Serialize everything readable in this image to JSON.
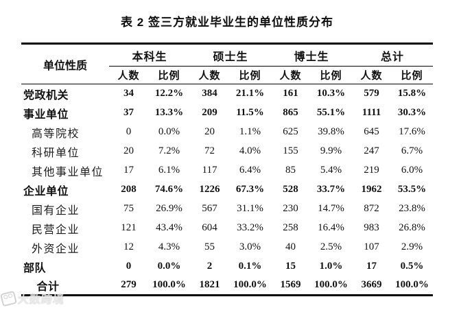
{
  "title": "表 2 签三方就业毕业生的单位性质分布",
  "table": {
    "row_header_label": "单位性质",
    "groups": [
      {
        "label": "本科生"
      },
      {
        "label": "硕士生"
      },
      {
        "label": "博士生"
      },
      {
        "label": "总计"
      }
    ],
    "subheaders": {
      "count": "人数",
      "ratio": "比例"
    },
    "rows": [
      {
        "label": "党政机关",
        "level": 0,
        "bold": true,
        "values": [
          "34",
          "12.2%",
          "384",
          "21.1%",
          "161",
          "10.3%",
          "579",
          "15.8%"
        ]
      },
      {
        "label": "事业单位",
        "level": 0,
        "bold": true,
        "values": [
          "37",
          "13.3%",
          "209",
          "11.5%",
          "865",
          "55.1%",
          "1111",
          "30.3%"
        ]
      },
      {
        "label": "高等院校",
        "level": 1,
        "bold": false,
        "values": [
          "0",
          "0.0%",
          "20",
          "1.1%",
          "625",
          "39.8%",
          "645",
          "17.6%"
        ]
      },
      {
        "label": "科研单位",
        "level": 1,
        "bold": false,
        "values": [
          "20",
          "7.2%",
          "72",
          "4.0%",
          "155",
          "9.9%",
          "247",
          "6.7%"
        ]
      },
      {
        "label": "其他事业单位",
        "level": 1,
        "bold": false,
        "values": [
          "17",
          "6.1%",
          "117",
          "6.4%",
          "85",
          "5.4%",
          "219",
          "6.0%"
        ]
      },
      {
        "label": "企业单位",
        "level": 0,
        "bold": true,
        "values": [
          "208",
          "74.6%",
          "1226",
          "67.3%",
          "528",
          "33.7%",
          "1962",
          "53.5%"
        ]
      },
      {
        "label": "国有企业",
        "level": 1,
        "bold": false,
        "values": [
          "75",
          "26.9%",
          "567",
          "31.1%",
          "230",
          "14.7%",
          "872",
          "23.8%"
        ]
      },
      {
        "label": "民营企业",
        "level": 1,
        "bold": false,
        "values": [
          "121",
          "43.4%",
          "604",
          "33.2%",
          "258",
          "16.4%",
          "983",
          "26.8%"
        ]
      },
      {
        "label": "外资企业",
        "level": 1,
        "bold": false,
        "values": [
          "12",
          "4.3%",
          "55",
          "3.0%",
          "40",
          "2.5%",
          "107",
          "2.9%"
        ]
      },
      {
        "label": "部队",
        "level": 0,
        "bold": true,
        "values": [
          "0",
          "0.0%",
          "2",
          "0.1%",
          "15",
          "1.0%",
          "17",
          "0.5%"
        ]
      },
      {
        "label": "合计",
        "level": 2,
        "bold": true,
        "values": [
          "279",
          "100.0%",
          "1821",
          "100.0%",
          "1569",
          "100.0%",
          "3669",
          "100.0%"
        ]
      }
    ]
  },
  "watermark": {
    "text": "大数跨境",
    "icon": "camera-logo"
  },
  "colors": {
    "text": "#111111",
    "border": "#000000",
    "watermark": "#c9c9c9",
    "background": "#ffffff"
  }
}
